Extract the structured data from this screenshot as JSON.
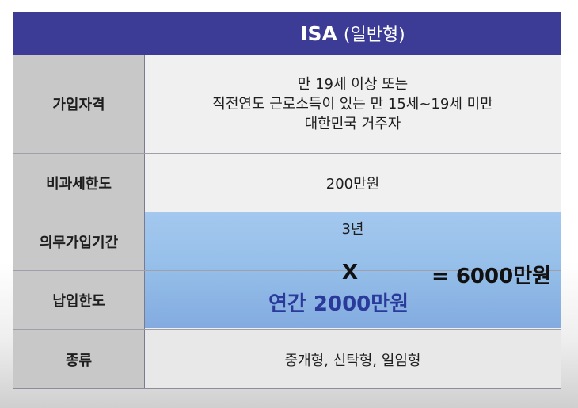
{
  "header": {
    "title": "ISA",
    "subtitle": "(일반형)"
  },
  "rows": [
    {
      "label": "가입자격",
      "lines": [
        "만 19세 이상 또는",
        "직전연도 근로소득이 있는 만 15세~19세 미만",
        "대한민국 거주자"
      ]
    },
    {
      "label": "비과세한도",
      "value": "200만원"
    },
    {
      "label": "의무가입기간",
      "value": "3년"
    },
    {
      "label": "납입한도",
      "value": "연간 2000만원"
    },
    {
      "label": "종류",
      "value": "중개형, 신탁형, 일임형"
    }
  ],
  "formula": {
    "operator": "X",
    "result": "= 6000만원"
  },
  "colors": {
    "header_bg": "#3c3c96",
    "label_bg": "#c8c8c8",
    "value_bg": "#f0f0f0",
    "highlight_band": "#95bfe9",
    "emphasis_text": "#2a3a9a"
  }
}
